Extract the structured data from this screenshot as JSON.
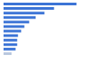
{
  "chart_data": {
    "type": "bar",
    "orientation": "horizontal",
    "categories": [
      null,
      null,
      null,
      null,
      null,
      null,
      null,
      null,
      null,
      null,
      null,
      null
    ],
    "values": [
      91,
      63,
      51,
      40,
      32,
      26,
      22,
      18,
      17,
      17,
      15,
      10
    ],
    "colors": [
      "#3c74d6",
      "#3c74d6",
      "#3c74d6",
      "#3c74d6",
      "#3c74d6",
      "#3c74d6",
      "#3c74d6",
      "#3c74d6",
      "#3c74d6",
      "#3c74d6",
      "#3c74d6",
      "#b9c7de"
    ],
    "xlim": [
      0,
      100
    ],
    "xticks": [
      0,
      100
    ],
    "grid": false,
    "tick_labels": false
  }
}
